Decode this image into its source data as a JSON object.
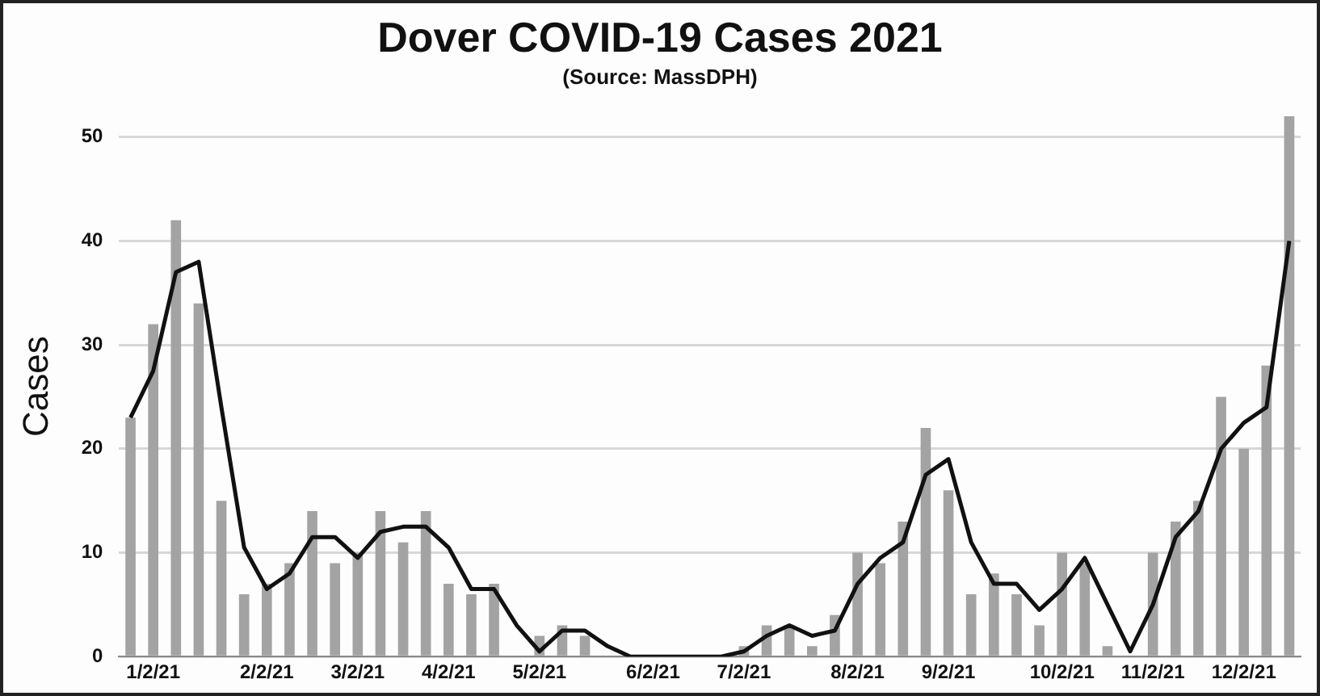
{
  "chart_data": {
    "type": "bar",
    "title": "Dover COVID-19 Cases 2021",
    "subtitle": "(Source: MassDPH)",
    "ylabel": "Cases",
    "categories": [
      null,
      "1/2/21",
      null,
      null,
      null,
      null,
      "2/2/21",
      null,
      null,
      null,
      "3/2/21",
      null,
      null,
      null,
      "4/2/21",
      null,
      null,
      null,
      "5/2/21",
      null,
      null,
      null,
      null,
      "6/2/21",
      null,
      null,
      null,
      "7/2/21",
      null,
      null,
      null,
      null,
      "8/2/21",
      null,
      null,
      null,
      "9/2/21",
      null,
      null,
      null,
      null,
      "10/2/21",
      null,
      null,
      null,
      "11/2/21",
      null,
      null,
      null,
      "12/2/21",
      null,
      null
    ],
    "series": [
      {
        "color": "#a3a3a3",
        "values": [
          23,
          32,
          42,
          34,
          15,
          6,
          7,
          9,
          14,
          9,
          10,
          14,
          11,
          14,
          7,
          6,
          7,
          0,
          2,
          3,
          2,
          0,
          0,
          0,
          0,
          0,
          0,
          1,
          3,
          3,
          1,
          4,
          10,
          9,
          13,
          22,
          16,
          6,
          8,
          6,
          3,
          10,
          9,
          1,
          0,
          10,
          13,
          15,
          25,
          20,
          28,
          52
        ]
      },
      {
        "type": "line",
        "color": "#111111",
        "values": [
          23,
          27.5,
          37,
          38,
          24,
          10.5,
          6.5,
          8,
          11.5,
          11.5,
          9.5,
          12,
          12.5,
          12.5,
          10.5,
          6.5,
          6.5,
          3,
          0.5,
          2.5,
          2.5,
          1,
          0,
          0,
          0,
          0,
          0,
          0.5,
          2,
          3,
          2,
          2.5,
          7,
          9.5,
          11,
          17.5,
          19,
          11,
          7,
          7,
          4.5,
          6.5,
          9.5,
          5,
          0.5,
          5,
          11.5,
          14,
          20,
          22.5,
          24,
          40
        ]
      }
    ],
    "ylim": [
      0,
      52
    ],
    "yticks": [
      0,
      10,
      20,
      30,
      40,
      50
    ],
    "grid": "y",
    "legend": false,
    "marker": "none",
    "line_style": "solid"
  }
}
